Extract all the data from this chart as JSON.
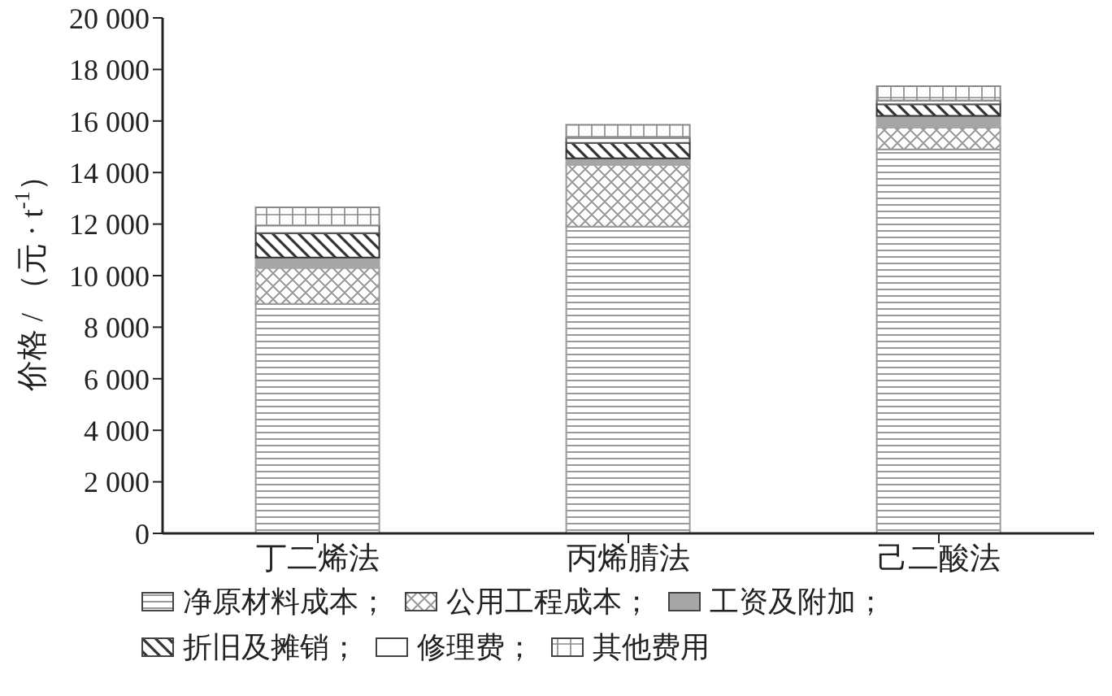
{
  "chart_data": {
    "type": "bar",
    "stacked": true,
    "ylabel": "价格 / （元 · t$^{-1}$）",
    "categories": [
      "丁二烯法",
      "丙烯腈法",
      "己二酸法"
    ],
    "series": [
      {
        "name": "净原材料成本；",
        "color": "#999999",
        "values": [
          8900,
          11900,
          14900
        ]
      },
      {
        "name": "公用工程成本；",
        "color": "#999999",
        "values": [
          1400,
          2400,
          850
        ]
      },
      {
        "name": "工资及附加；",
        "color": "#a6a6a6",
        "values": [
          400,
          250,
          450
        ]
      },
      {
        "name": "折旧及摊销；",
        "color": "#333333",
        "values": [
          950,
          600,
          450
        ]
      },
      {
        "name": "修理费；",
        "color": "#555555",
        "values": [
          300,
          200,
          150
        ]
      },
      {
        "name": "其他费用",
        "color": "#888888",
        "values": [
          700,
          500,
          550
        ]
      }
    ],
    "ylim": [
      0,
      20000
    ],
    "yticks": [
      {
        "value": 0,
        "label": "0"
      },
      {
        "value": 2000,
        "label": "2 000"
      },
      {
        "value": 4000,
        "label": "4 000"
      },
      {
        "value": 6000,
        "label": "6 000"
      },
      {
        "value": 8000,
        "label": "8 000"
      },
      {
        "value": 10000,
        "label": "10 000"
      },
      {
        "value": 12000,
        "label": "12 000"
      },
      {
        "value": 14000,
        "label": "14 000"
      },
      {
        "value": 16000,
        "label": "16 000"
      },
      {
        "value": 18000,
        "label": "18 000"
      },
      {
        "value": 20000,
        "label": "20 000"
      }
    ],
    "legend": "bottom"
  }
}
